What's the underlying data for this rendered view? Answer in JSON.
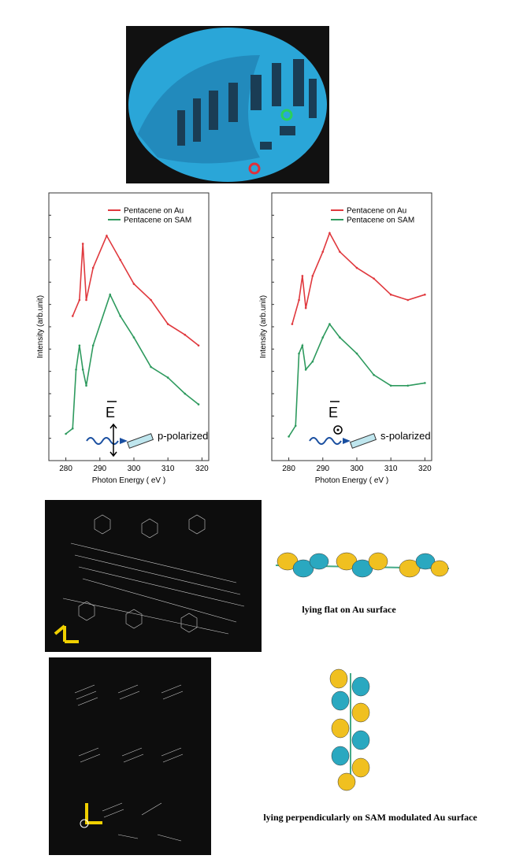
{
  "chart_data": [
    {
      "type": "line",
      "x_label": "Photon Energy ( eV )",
      "y_label": "Intensity (arb.unit)",
      "xlim": [
        275,
        322
      ],
      "xticks": [
        280,
        290,
        300,
        310,
        320
      ],
      "ylim": [
        0,
        10
      ],
      "legend": "top",
      "annotation": "E",
      "polarization": "p-polarized",
      "series": [
        {
          "name": "Pentacene on Au",
          "color": "#e0393e",
          "x": [
            282,
            284,
            285,
            286,
            288,
            292,
            296,
            300,
            305,
            310,
            315,
            319
          ],
          "values": [
            5.4,
            6.0,
            8.1,
            6.0,
            7.2,
            8.4,
            7.5,
            6.6,
            6.0,
            5.1,
            4.7,
            4.3
          ]
        },
        {
          "name": "Pentacene on SAM",
          "color": "#2e9a5e",
          "x": [
            280,
            282,
            283,
            284,
            285,
            286,
            288,
            293,
            296,
            300,
            305,
            310,
            315,
            319
          ],
          "values": [
            1.0,
            1.2,
            3.4,
            4.3,
            3.4,
            2.8,
            4.3,
            6.2,
            5.4,
            4.6,
            3.5,
            3.1,
            2.5,
            2.1
          ]
        }
      ]
    },
    {
      "type": "line",
      "x_label": "Photon Energy ( eV )",
      "y_label": "Intensity (arb.unit)",
      "xlim": [
        275,
        322
      ],
      "xticks": [
        280,
        290,
        300,
        310,
        320
      ],
      "ylim": [
        0,
        10
      ],
      "legend": "top",
      "annotation": "E",
      "polarization": "s-polarized",
      "series": [
        {
          "name": "Pentacene on Au",
          "color": "#e0393e",
          "x": [
            281,
            283,
            284,
            285,
            287,
            290,
            292,
            295,
            300,
            305,
            310,
            315,
            320
          ],
          "values": [
            5.1,
            6.0,
            6.9,
            5.7,
            6.9,
            7.8,
            8.5,
            7.8,
            7.2,
            6.8,
            6.2,
            6.0,
            6.2
          ]
        },
        {
          "name": "Pentacene on SAM",
          "color": "#2e9a5e",
          "x": [
            280,
            282,
            283,
            284,
            285,
            287,
            290,
            292,
            295,
            300,
            305,
            310,
            315,
            320
          ],
          "values": [
            0.9,
            1.3,
            4.0,
            4.3,
            3.4,
            3.7,
            4.6,
            5.1,
            4.6,
            4.0,
            3.2,
            2.8,
            2.8,
            2.9
          ]
        }
      ]
    }
  ],
  "captions": [
    "lying flat on Au surface",
    "lying perpendicularly on SAM modulated Au surface"
  ]
}
